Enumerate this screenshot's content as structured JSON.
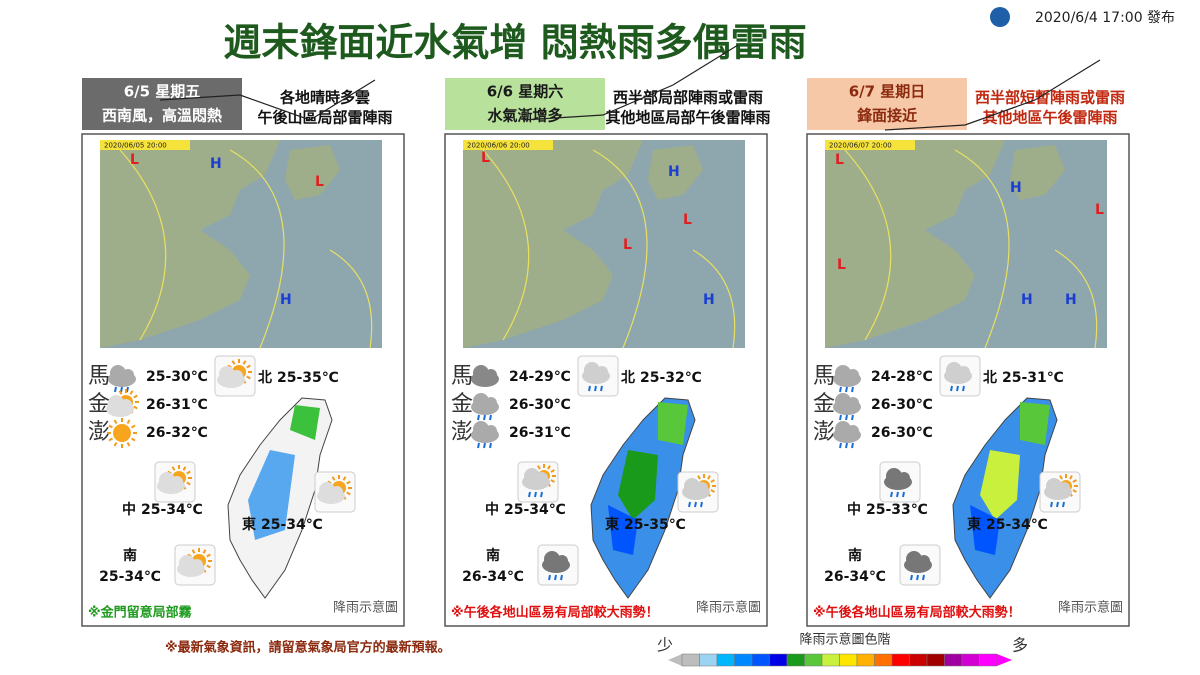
{
  "header": {
    "title": "週末鋒面近水氣增  悶熱雨多偶雷雨",
    "issued": "2020/6/4 17:00 發布"
  },
  "panels": [
    {
      "date_label": "6/5 星期五",
      "date_sub": "西南風，高溫悶熱",
      "description": [
        "各地晴時多雲",
        "午後山區局部雷陣雨"
      ],
      "map_time": "2020/06/05 20:00",
      "pressure_centers": [
        "L",
        "H",
        "L",
        "H"
      ],
      "islands": [
        {
          "name": "馬",
          "temp": "25-30℃"
        },
        {
          "name": "金",
          "temp": "26-31℃"
        },
        {
          "name": "澎",
          "temp": "26-32℃"
        }
      ],
      "regions": [
        {
          "name": "北",
          "temp": "25-35℃"
        },
        {
          "name": "中",
          "temp": "25-34℃"
        },
        {
          "name": "東",
          "temp": "25-34℃"
        },
        {
          "name": "南",
          "temp": "25-34℃"
        }
      ],
      "rain_label": "降雨示意圖",
      "note": "※金門留意局部霧"
    },
    {
      "date_label": "6/6 星期六",
      "date_sub": "水氣漸增多",
      "description": [
        "西半部局部陣雨或雷雨",
        "其他地區局部午後雷陣雨"
      ],
      "map_time": "2020/06/06 20:00",
      "pressure_centers": [
        "L",
        "H",
        "L",
        "L",
        "H"
      ],
      "islands": [
        {
          "name": "馬",
          "temp": "24-29℃"
        },
        {
          "name": "金",
          "temp": "26-30℃"
        },
        {
          "name": "澎",
          "temp": "26-31℃"
        }
      ],
      "regions": [
        {
          "name": "北",
          "temp": "25-32℃"
        },
        {
          "name": "中",
          "temp": "25-34℃"
        },
        {
          "name": "東",
          "temp": "25-35℃"
        },
        {
          "name": "南",
          "temp": "26-34℃"
        }
      ],
      "rain_label": "降雨示意圖",
      "note": "※午後各地山區易有局部較大雨勢！"
    },
    {
      "date_label": "6/7 星期日",
      "date_sub": "鋒面接近",
      "description": [
        "西半部短暫陣雨或雷雨",
        "其他地區午後雷陣雨"
      ],
      "map_time": "2020/06/07 20:00",
      "pressure_centers": [
        "L",
        "H",
        "H",
        "L",
        "L",
        "H"
      ],
      "islands": [
        {
          "name": "馬",
          "temp": "24-28℃"
        },
        {
          "name": "金",
          "temp": "26-30℃"
        },
        {
          "name": "澎",
          "temp": "26-30℃"
        }
      ],
      "regions": [
        {
          "name": "北",
          "temp": "25-31℃"
        },
        {
          "name": "中",
          "temp": "25-33℃"
        },
        {
          "name": "東",
          "temp": "25-34℃"
        },
        {
          "name": "南",
          "temp": "26-34℃"
        }
      ],
      "rain_label": "降雨示意圖",
      "note": "※午後各地山區易有局部較大雨勢！"
    }
  ],
  "footer": {
    "note": "※最新氣象資訊，請留意氣象局官方的最新預報。"
  },
  "legend": {
    "title": "降雨示意圖色階",
    "low": "少",
    "high": "多"
  }
}
